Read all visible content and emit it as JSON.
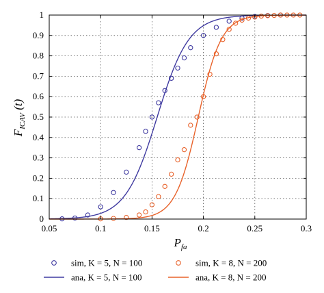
{
  "chart_data": {
    "type": "line",
    "xlabel": "P_fa",
    "ylabel": "F_ICAV(t)",
    "xlim": [
      0.05,
      0.3
    ],
    "ylim": [
      0,
      1
    ],
    "xticks": [
      "0.05",
      "0.1",
      "0.15",
      "0.2",
      "0.25",
      "0.3"
    ],
    "yticks": [
      "0",
      "0.1",
      "0.2",
      "0.3",
      "0.4",
      "0.5",
      "0.6",
      "0.7",
      "0.8",
      "0.9",
      "1"
    ],
    "grid": true,
    "legend_position": "bottom",
    "series": [
      {
        "name": "sim, K = 5, N = 100",
        "style": "markers",
        "color": "#3f3aa0",
        "x": [
          0.0625,
          0.075,
          0.0875,
          0.1,
          0.1125,
          0.125,
          0.1375,
          0.1438,
          0.15,
          0.1563,
          0.1625,
          0.1688,
          0.175,
          0.1813,
          0.1875,
          0.2,
          0.2125,
          0.225,
          0.2375,
          0.25,
          0.2625,
          0.275
        ],
        "y": [
          0.001,
          0.005,
          0.02,
          0.06,
          0.13,
          0.23,
          0.35,
          0.43,
          0.5,
          0.57,
          0.63,
          0.69,
          0.74,
          0.79,
          0.84,
          0.9,
          0.94,
          0.97,
          0.985,
          0.993,
          0.998,
          1.0
        ]
      },
      {
        "name": "ana, K = 5, N = 100",
        "style": "line",
        "color": "#3f3aa0",
        "logistic": {
          "center": 0.155,
          "scale": 0.0155
        }
      },
      {
        "name": "sim, K = 8, N = 200",
        "style": "markers",
        "color": "#e8622a",
        "x": [
          0.1,
          0.1125,
          0.125,
          0.1375,
          0.1438,
          0.15,
          0.1563,
          0.1625,
          0.1688,
          0.175,
          0.1813,
          0.1875,
          0.1938,
          0.2,
          0.2063,
          0.2125,
          0.2188,
          0.225,
          0.2313,
          0.2375,
          0.2438,
          0.25,
          0.2563,
          0.2625,
          0.2688,
          0.275,
          0.2813,
          0.2875,
          0.2938
        ],
        "y": [
          0.001,
          0.003,
          0.008,
          0.02,
          0.035,
          0.07,
          0.11,
          0.16,
          0.22,
          0.29,
          0.34,
          0.46,
          0.5,
          0.6,
          0.71,
          0.81,
          0.88,
          0.93,
          0.96,
          0.975,
          0.985,
          0.99,
          0.995,
          0.997,
          0.998,
          1.0,
          1.0,
          1.0,
          1.0
        ]
      },
      {
        "name": "ana, K = 8, N = 200",
        "style": "line",
        "color": "#e8622a",
        "logistic": {
          "center": 0.195,
          "scale": 0.0112
        }
      }
    ]
  }
}
